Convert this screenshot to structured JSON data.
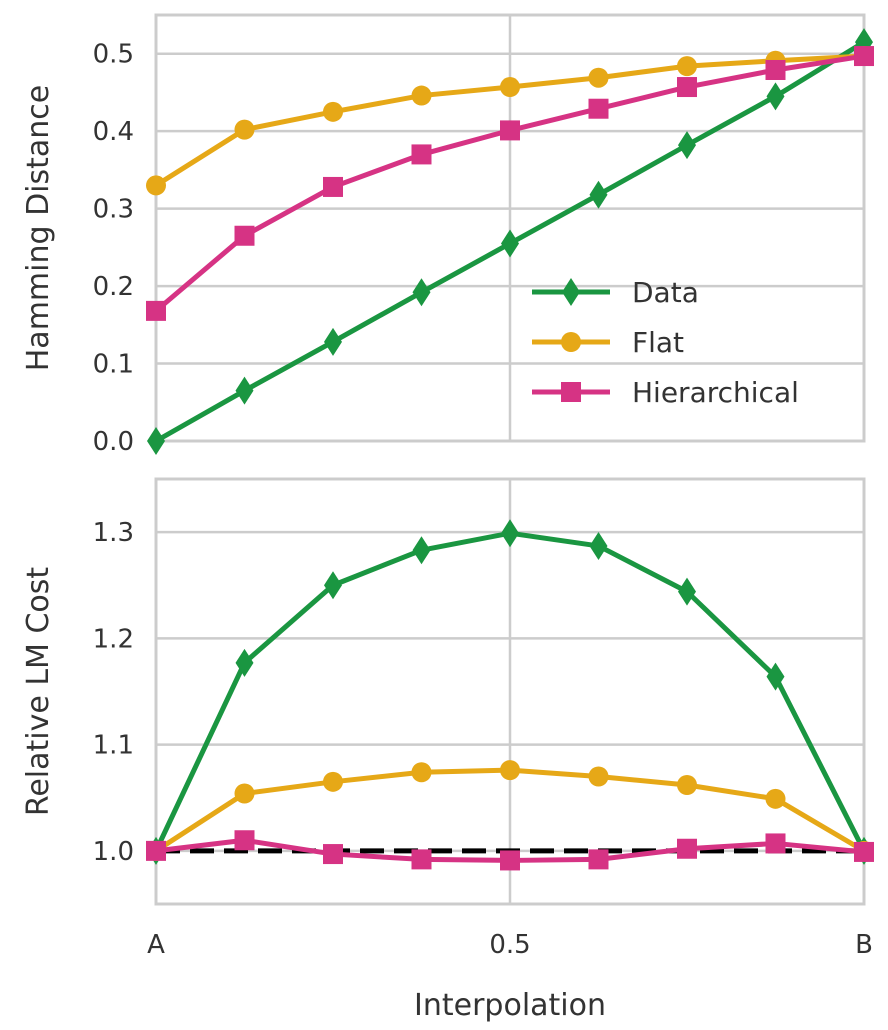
{
  "chart_data": [
    {
      "type": "line",
      "ylabel": "Hamming Distance",
      "xlim": [
        0,
        1
      ],
      "ylim": [
        0,
        0.55
      ],
      "yticks": [
        "0.0",
        "0.1",
        "0.2",
        "0.3",
        "0.4",
        "0.5"
      ],
      "ytick_values": [
        0,
        0.1,
        0.2,
        0.3,
        0.4,
        0.5
      ],
      "grid": true,
      "legend_position": "lower-right",
      "x": [
        0,
        0.125,
        0.25,
        0.375,
        0.5,
        0.625,
        0.75,
        0.875,
        1
      ],
      "series": [
        {
          "name": "Data",
          "color": "#1a9641",
          "marker": "diamond",
          "values": [
            0.0,
            0.065,
            0.128,
            0.192,
            0.255,
            0.318,
            0.382,
            0.445,
            0.515
          ]
        },
        {
          "name": "Flat",
          "color": "#e6a817",
          "marker": "circle",
          "values": [
            0.33,
            0.402,
            0.425,
            0.446,
            0.457,
            0.469,
            0.484,
            0.491,
            0.497
          ]
        },
        {
          "name": "Hierarchical",
          "color": "#d63384",
          "marker": "square",
          "values": [
            0.168,
            0.265,
            0.328,
            0.37,
            0.401,
            0.429,
            0.457,
            0.479,
            0.497
          ]
        }
      ]
    },
    {
      "type": "line",
      "xlabel": "Interpolation",
      "ylabel": "Relative LM Cost",
      "xlim": [
        0,
        1
      ],
      "ylim": [
        0.95,
        1.35
      ],
      "xticks": [
        "A",
        "0.5",
        "B"
      ],
      "xtick_values": [
        0,
        0.5,
        1
      ],
      "yticks": [
        "1.0",
        "1.1",
        "1.2",
        "1.3"
      ],
      "ytick_values": [
        1.0,
        1.1,
        1.2,
        1.3
      ],
      "grid": true,
      "reference_line": {
        "y": 1.0,
        "style": "dashed",
        "color": "#000000"
      },
      "x": [
        0,
        0.125,
        0.25,
        0.375,
        0.5,
        0.625,
        0.75,
        0.875,
        1
      ],
      "series": [
        {
          "name": "Data",
          "color": "#1a9641",
          "marker": "diamond",
          "values": [
            1.0,
            1.177,
            1.25,
            1.283,
            1.299,
            1.287,
            1.244,
            1.164,
            1.0
          ]
        },
        {
          "name": "Flat",
          "color": "#e6a817",
          "marker": "circle",
          "values": [
            1.0,
            1.054,
            1.065,
            1.074,
            1.076,
            1.07,
            1.062,
            1.049,
            1.0
          ]
        },
        {
          "name": "Hierarchical",
          "color": "#d63384",
          "marker": "square",
          "values": [
            1.0,
            1.01,
            0.997,
            0.992,
            0.991,
            0.992,
            1.002,
            1.007,
            0.999
          ]
        }
      ]
    }
  ]
}
